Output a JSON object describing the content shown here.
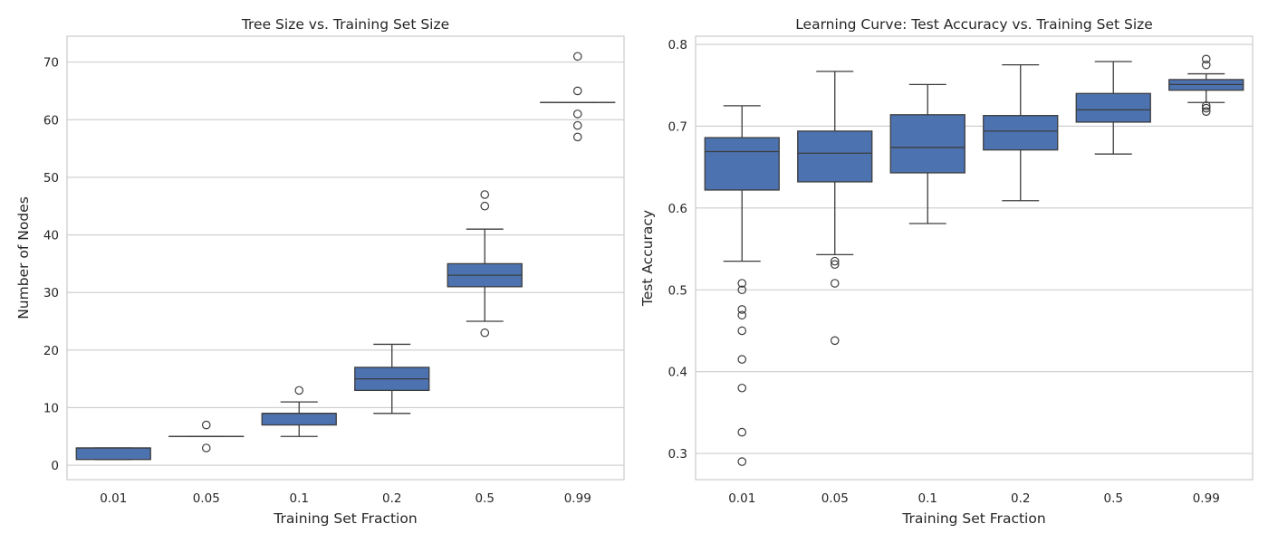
{
  "chart_data": [
    {
      "type": "box",
      "title": "Tree Size vs. Training Set Size",
      "xlabel": "Training Set Fraction",
      "ylabel": "Number of Nodes",
      "ylim": [
        -2.5,
        74.5
      ],
      "yticks": [
        0,
        10,
        20,
        30,
        40,
        50,
        60,
        70
      ],
      "grid": "horizontal",
      "color": "#4c72b0",
      "categories": [
        "0.01",
        "0.05",
        "0.1",
        "0.2",
        "0.5",
        "0.99"
      ],
      "boxes": [
        {
          "category": "0.01",
          "whisker_low": 1,
          "q1": 1,
          "median": 3,
          "q3": 3,
          "whisker_high": 3,
          "outliers": []
        },
        {
          "category": "0.05",
          "whisker_low": 5,
          "q1": 5,
          "median": 5,
          "q3": 5,
          "whisker_high": 5,
          "outliers": [
            3,
            7
          ]
        },
        {
          "category": "0.1",
          "whisker_low": 5,
          "q1": 7,
          "median": 9,
          "q3": 9,
          "whisker_high": 11,
          "outliers": [
            13
          ]
        },
        {
          "category": "0.2",
          "whisker_low": 9,
          "q1": 13,
          "median": 15,
          "q3": 17,
          "whisker_high": 21,
          "outliers": []
        },
        {
          "category": "0.5",
          "whisker_low": 25,
          "q1": 31,
          "median": 33,
          "q3": 35,
          "whisker_high": 41,
          "outliers": [
            23,
            45,
            47
          ]
        },
        {
          "category": "0.99",
          "whisker_low": 63,
          "q1": 63,
          "median": 63,
          "q3": 63,
          "whisker_high": 63,
          "outliers": [
            57,
            59,
            61,
            65,
            71
          ]
        }
      ]
    },
    {
      "type": "box",
      "title": "Learning Curve: Test Accuracy vs. Training Set Size",
      "xlabel": "Training Set Fraction",
      "ylabel": "Test Accuracy",
      "ylim": [
        0.268,
        0.81
      ],
      "yticks": [
        0.3,
        0.4,
        0.5,
        0.6,
        0.7,
        0.8
      ],
      "grid": "horizontal",
      "color": "#4c72b0",
      "categories": [
        "0.01",
        "0.05",
        "0.1",
        "0.2",
        "0.5",
        "0.99"
      ],
      "boxes": [
        {
          "category": "0.01",
          "whisker_low": 0.535,
          "q1": 0.622,
          "median": 0.669,
          "q3": 0.686,
          "whisker_high": 0.725,
          "outliers": [
            0.508,
            0.5,
            0.476,
            0.469,
            0.45,
            0.415,
            0.38,
            0.326,
            0.29
          ]
        },
        {
          "category": "0.05",
          "whisker_low": 0.543,
          "q1": 0.632,
          "median": 0.667,
          "q3": 0.694,
          "whisker_high": 0.767,
          "outliers": [
            0.535,
            0.531,
            0.508,
            0.438
          ]
        },
        {
          "category": "0.1",
          "whisker_low": 0.581,
          "q1": 0.643,
          "median": 0.674,
          "q3": 0.714,
          "whisker_high": 0.751,
          "outliers": []
        },
        {
          "category": "0.2",
          "whisker_low": 0.609,
          "q1": 0.671,
          "median": 0.694,
          "q3": 0.713,
          "whisker_high": 0.775,
          "outliers": []
        },
        {
          "category": "0.5",
          "whisker_low": 0.666,
          "q1": 0.705,
          "median": 0.72,
          "q3": 0.74,
          "whisker_high": 0.779,
          "outliers": []
        },
        {
          "category": "0.99",
          "whisker_low": 0.729,
          "q1": 0.744,
          "median": 0.751,
          "q3": 0.757,
          "whisker_high": 0.764,
          "outliers": [
            0.782,
            0.775,
            0.725,
            0.722,
            0.718
          ]
        }
      ]
    }
  ]
}
